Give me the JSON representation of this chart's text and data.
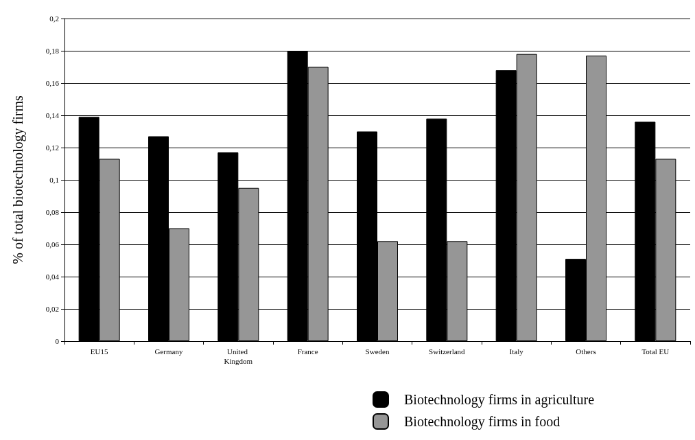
{
  "chart_data": {
    "type": "bar",
    "ylabel": "% of total biotechnology firms",
    "categories": [
      "EU15",
      "Germany",
      "United Kingdom",
      "France",
      "Sweden",
      "Switzerland",
      "Italy",
      "Others",
      "Total EU"
    ],
    "series": [
      {
        "name": "Biotechnology firms in agriculture",
        "color": "#000000",
        "values": [
          0.139,
          0.127,
          0.117,
          0.18,
          0.13,
          0.138,
          0.168,
          0.051,
          0.136
        ]
      },
      {
        "name": "Biotechnology firms in food",
        "color": "#969696",
        "values": [
          0.113,
          0.07,
          0.095,
          0.17,
          0.062,
          0.062,
          0.178,
          0.177,
          0.113
        ]
      }
    ],
    "ylim": [
      0,
      0.2
    ],
    "yticks": [
      0,
      {
        "value": 0.02,
        "label": "0,02"
      },
      {
        "value": 0.04,
        "label": "0,04"
      },
      {
        "value": 0.06,
        "label": "0,06"
      },
      {
        "value": 0.08,
        "label": "0,08"
      },
      {
        "value": 0.1,
        "label": "0,1"
      },
      {
        "value": 0.12,
        "label": "0,12"
      },
      {
        "value": 0.14,
        "label": "0,14"
      },
      {
        "value": 0.16,
        "label": "0,16"
      },
      {
        "value": 0.18,
        "label": "0,18"
      },
      {
        "value": 0.2,
        "label": "0,2"
      }
    ],
    "grid": "y",
    "legend": "bottom right"
  }
}
